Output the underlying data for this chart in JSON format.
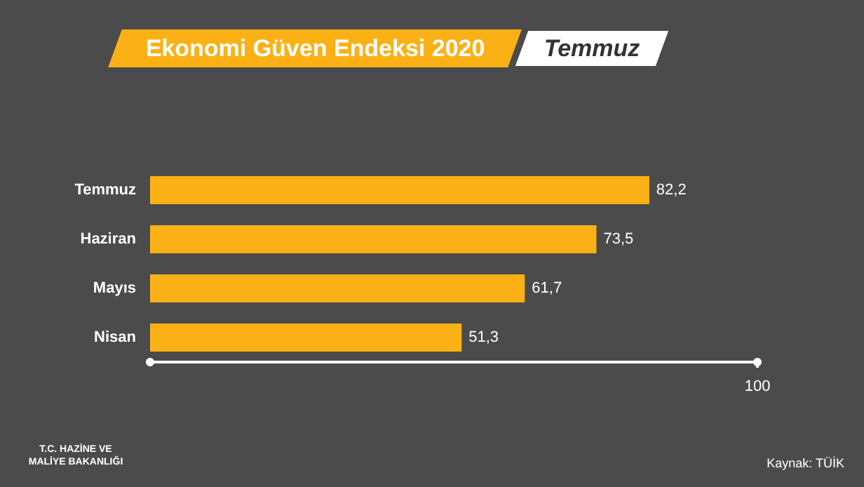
{
  "chart_data": {
    "type": "bar",
    "orientation": "horizontal",
    "title": "Ekonomi Güven Endeksi 2020",
    "subtitle": "Temmuz",
    "categories": [
      "Temmuz",
      "Haziran",
      "Mayıs",
      "Nisan"
    ],
    "series": [
      {
        "color": "#fbb116",
        "values": [
          82.2,
          73.5,
          61.7,
          51.3
        ],
        "value_labels": [
          "82,2",
          "73,5",
          "61,7",
          "51,3"
        ]
      }
    ],
    "xlim": [
      0,
      100
    ],
    "xticks": [
      100
    ],
    "grid": false,
    "annotations": [
      "T.C. HAZİNE VE MALİYE BAKANLIĞI",
      "Kaynak: TÜİK"
    ]
  }
}
